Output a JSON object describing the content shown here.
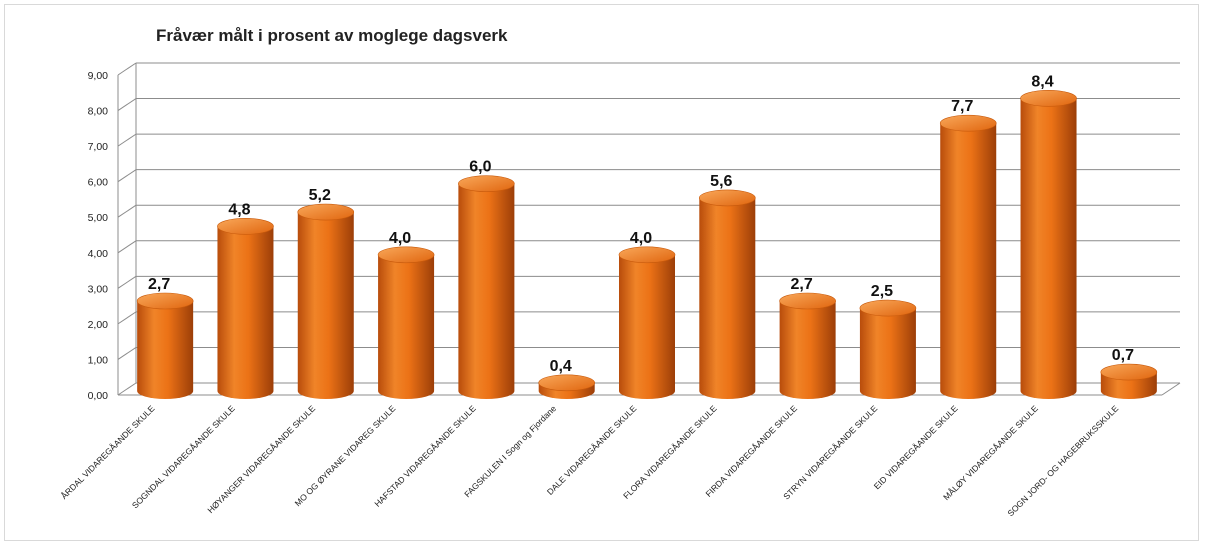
{
  "chart_data": {
    "type": "bar",
    "title": "Fråvær målt i prosent av moglege dagsverk",
    "xlabel": "",
    "ylabel": "",
    "ylim": [
      0,
      9
    ],
    "grid": true,
    "y_ticks": [
      "0,00",
      "1,00",
      "2,00",
      "3,00",
      "4,00",
      "5,00",
      "6,00",
      "7,00",
      "8,00",
      "9,00"
    ],
    "categories": [
      "ÅRDAL VIDAREGÅANDE SKULE",
      "SOGNDAL VIDAREGÅANDE SKULE",
      "HØYANGER VIDAREGÅANDE SKULE",
      "MO OG ØYRANE VIDAREG SKULE",
      "HAFSTAD VIDAREGÅANDE SKULE",
      "FAGSKULEN I Sogn og Fjordane",
      "DALE VIDAREGÅANDE SKULE",
      "FLORA VIDAREGÅANDE SKULE",
      "FIRDA VIDAREGÅANDE SKULE",
      "STRYN VIDAREGÅANDE SKULE",
      "EID VIDAREGÅANDE SKULE",
      "MÅLØY VIDAREGÅANDE SKULE",
      "SOGN JORD- OG HAGEBRUKSSKULE"
    ],
    "values": [
      2.7,
      4.8,
      5.2,
      4.0,
      6.0,
      0.4,
      4.0,
      5.6,
      2.7,
      2.5,
      7.7,
      8.4,
      0.7
    ],
    "data_labels": [
      "2,7",
      "4,8",
      "5,2",
      "4,0",
      "6,0",
      "0,4",
      "4,0",
      "5,6",
      "2,7",
      "2,5",
      "7,7",
      "8,4",
      "0,7"
    ],
    "colors": {
      "bar": "#e8680f",
      "bar_light": "#f79a45",
      "bar_dark": "#a8430a",
      "grid": "#8c8c8c"
    }
  }
}
